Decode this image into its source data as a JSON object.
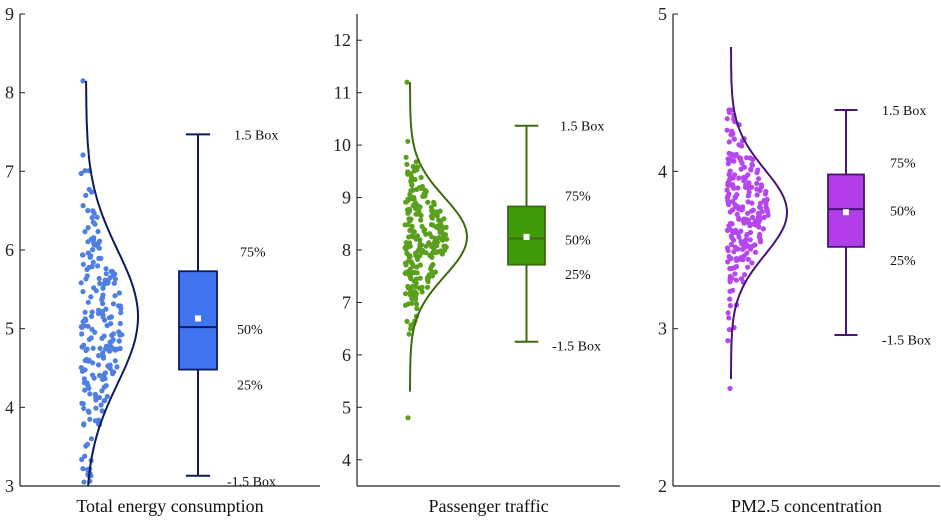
{
  "chart_data": [
    {
      "type": "box-violin-scatter",
      "xlabel": "Total energy consumption",
      "ylim": [
        3,
        9
      ],
      "yticks": [
        3,
        4,
        5,
        6,
        7,
        8,
        9
      ],
      "color": "#4f7fe3",
      "box_fill": "#3f74ee",
      "curve_color": "#0d1a5e",
      "box": {
        "whisker_low": 3.13,
        "q1": 4.48,
        "median": 5.02,
        "q3": 5.73,
        "whisker_high": 7.47,
        "mean": 5.13
      },
      "labels": {
        "high": "1.5 Box",
        "q3": "75%",
        "median": "50%",
        "q1": "25%",
        "low": "-1.5 Box"
      },
      "points": {
        "count": 210,
        "min": 3.05,
        "max": 8.15,
        "center": 5.05,
        "spread": 0.9
      },
      "curve": {
        "min": 3.0,
        "max": 8.15,
        "peak": 5.15,
        "sd": 0.85
      }
    },
    {
      "type": "box-violin-scatter",
      "xlabel": "Passenger traffic",
      "ylim": [
        3.5,
        12.5
      ],
      "yticks": [
        4,
        5,
        6,
        7,
        8,
        9,
        10,
        11,
        12
      ],
      "color": "#5aa01e",
      "box_fill": "#3f9c08",
      "curve_color": "#3d6b0e",
      "box": {
        "whisker_low": 6.25,
        "q1": 7.72,
        "median": 8.22,
        "q3": 8.83,
        "whisker_high": 10.37,
        "mean": 8.25
      },
      "labels": {
        "high": "1.5 Box",
        "q3": "75%",
        "median": "50%",
        "q1": "25%",
        "low": "-1.5 Box"
      },
      "points": {
        "count": 230,
        "min": 4.8,
        "max": 11.2,
        "center": 8.25,
        "spread": 0.75
      },
      "curve": {
        "min": 5.3,
        "max": 11.2,
        "peak": 8.25,
        "sd": 0.75
      }
    },
    {
      "type": "box-violin-scatter",
      "xlabel": "PM2.5 concentration",
      "ylim": [
        2,
        5
      ],
      "yticks": [
        2,
        3,
        4,
        5
      ],
      "color": "#b548ec",
      "box_fill": "#b13ee8",
      "curve_color": "#4a1378",
      "box": {
        "whisker_low": 2.96,
        "q1": 3.52,
        "median": 3.76,
        "q3": 3.98,
        "whisker_high": 4.39,
        "mean": 3.74
      },
      "labels": {
        "high": "1.5 Box",
        "q3": "75%",
        "median": "50%",
        "q1": "25%",
        "low": "-1.5 Box"
      },
      "points": {
        "count": 230,
        "min": 2.62,
        "max": 4.39,
        "center": 3.75,
        "spread": 0.3
      },
      "curve": {
        "min": 2.68,
        "max": 4.79,
        "peak": 3.74,
        "sd": 0.27
      }
    }
  ]
}
